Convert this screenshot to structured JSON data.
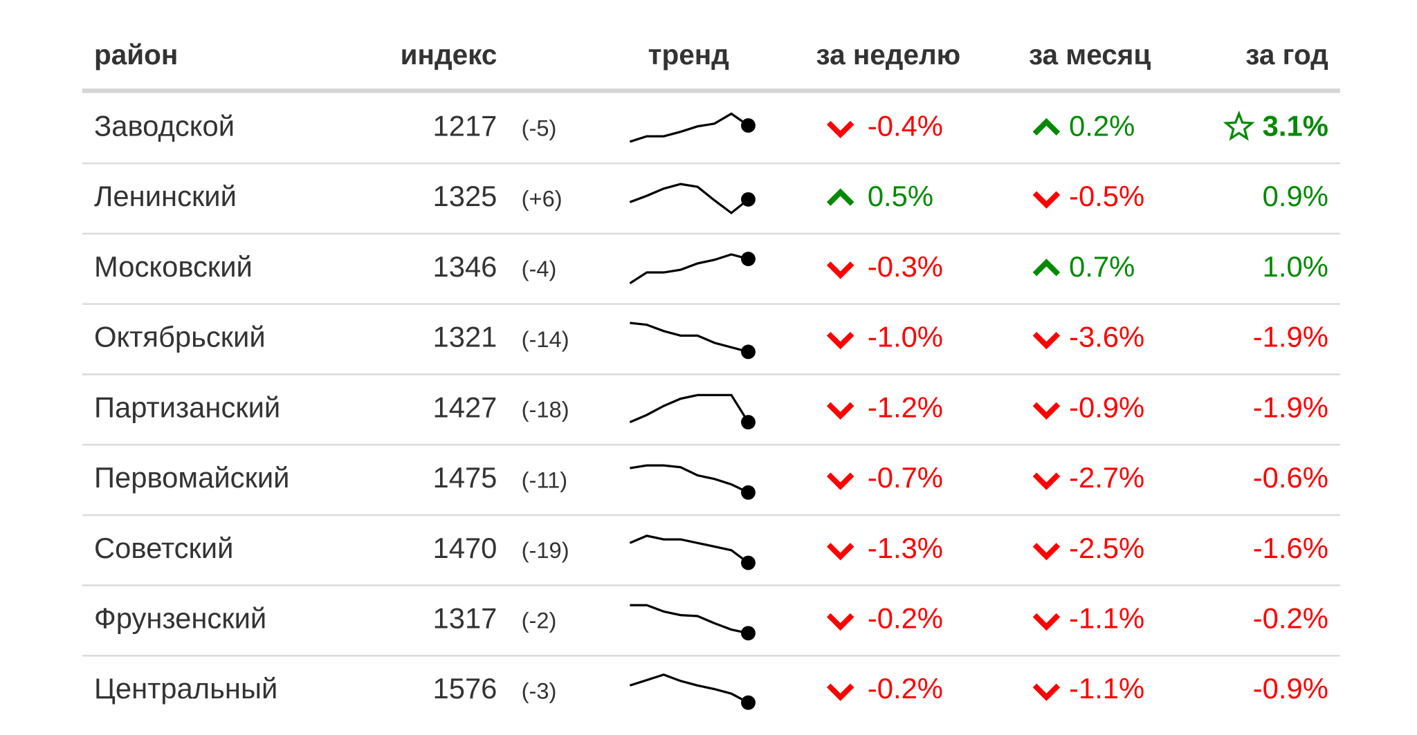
{
  "table": {
    "header": [
      "район",
      "индекс",
      "тренд",
      "за неделю",
      "за месяц",
      "за год"
    ],
    "rows": [
      {
        "district": "Заводской",
        "index": 1217,
        "change": "(-5)",
        "trend": [
          3,
          9,
          9,
          14,
          20,
          23,
          34,
          21
        ],
        "week": "-0.4%",
        "month": "0.2%",
        "year": "3.1%",
        "star": true
      },
      {
        "district": "Ленинский",
        "index": 1325,
        "change": "(+6)",
        "trend": [
          14,
          21,
          29,
          34,
          31,
          16,
          2,
          17
        ],
        "week": "0.5%",
        "month": "-0.5%",
        "year": "0.9%"
      },
      {
        "district": "Московский",
        "index": 1346,
        "change": "(-4)",
        "trend": [
          2,
          14,
          14,
          17,
          24,
          28,
          34,
          29
        ],
        "week": "-0.3%",
        "month": "0.7%",
        "year": "1.0%"
      },
      {
        "district": "Октябрьский",
        "index": 1321,
        "change": "(-14)",
        "trend": [
          36,
          34,
          27,
          22,
          22,
          14,
          9,
          4
        ],
        "week": "-1.0%",
        "month": "-3.6%",
        "year": "-1.9%"
      },
      {
        "district": "Партизанский",
        "index": 1427,
        "change": "(-18)",
        "trend": [
          4,
          12,
          22,
          30,
          34,
          34,
          34,
          4
        ],
        "week": "-1.2%",
        "month": "-0.9%",
        "year": "-1.9%"
      },
      {
        "district": "Первомайский",
        "index": 1475,
        "change": "(-11)",
        "trend": [
          31,
          34,
          34,
          32,
          23,
          19,
          13,
          4
        ],
        "week": "-0.7%",
        "month": "-2.7%",
        "year": "-0.6%"
      },
      {
        "district": "Советский",
        "index": 1470,
        "change": "(-19)",
        "trend": [
          26,
          34,
          30,
          30,
          26,
          22,
          18,
          4
        ],
        "week": "-1.3%",
        "month": "-2.5%",
        "year": "-1.6%"
      },
      {
        "district": "Фрунзенский",
        "index": 1317,
        "change": "(-2)",
        "trend": [
          35,
          35,
          28,
          24,
          23,
          15,
          8,
          4
        ],
        "week": "-0.2%",
        "month": "-1.1%",
        "year": "-0.2%"
      },
      {
        "district": "Центральный",
        "index": 1576,
        "change": "(-3)",
        "trend": [
          24,
          30,
          36,
          29,
          24,
          20,
          15,
          5
        ],
        "week": "-0.2%",
        "month": "-1.1%",
        "year": "-0.9%"
      }
    ],
    "positive_color": "#008a00",
    "negative_color": "#ff0000"
  }
}
